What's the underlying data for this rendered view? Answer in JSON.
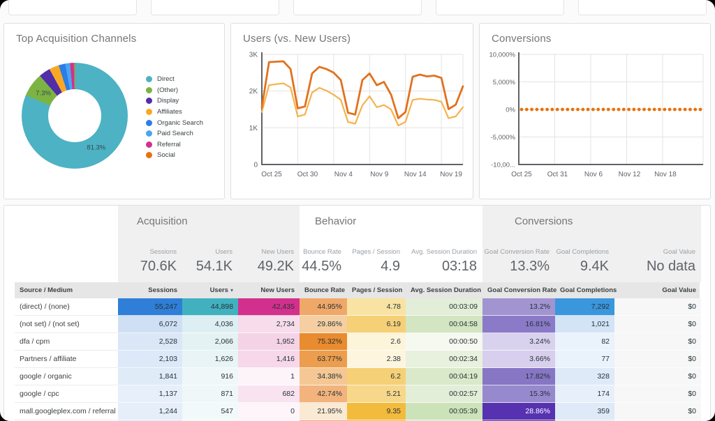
{
  "window": {
    "background": "#fbfbfb",
    "frame_color": "#000000"
  },
  "chart_data": [
    {
      "type": "pie",
      "title": "Top Acquisition Channels",
      "donut": true,
      "legend_position": "right",
      "slices": [
        {
          "label": "Direct",
          "value": 81.3,
          "color": "#4cb2c4",
          "pct_label": "81.3%"
        },
        {
          "label": "(Other)",
          "value": 7.3,
          "color": "#7cb342",
          "pct_label": "7.3%"
        },
        {
          "label": "Display",
          "value": 3.5,
          "color": "#512da8"
        },
        {
          "label": "Affiliates",
          "value": 3.0,
          "color": "#f9a825"
        },
        {
          "label": "Organic Search",
          "value": 2.0,
          "color": "#2b7de9"
        },
        {
          "label": "Paid Search",
          "value": 1.5,
          "color": "#4aa5f0"
        },
        {
          "label": "Referral",
          "value": 1.1,
          "color": "#d3308e"
        },
        {
          "label": "Social",
          "value": 0.3,
          "color": "#e8710a"
        }
      ]
    },
    {
      "type": "line",
      "title": "Users (vs. New Users)",
      "grid": true,
      "ylim": [
        0,
        3000
      ],
      "y_tick_labels": [
        "3K",
        "2K",
        "1K",
        "0"
      ],
      "x_tick_labels": [
        "Oct 25",
        "Oct 30",
        "Nov 4",
        "Nov 9",
        "Nov 14",
        "Nov 19"
      ],
      "x_tick_indices": [
        0,
        5,
        10,
        15,
        20,
        25
      ],
      "series": [
        {
          "name": "New Users",
          "color": "#f6b24c",
          "values": [
            1430,
            2160,
            2190,
            2210,
            2100,
            1310,
            1360,
            1960,
            2090,
            2010,
            1900,
            1760,
            1160,
            1110,
            1610,
            1860,
            1560,
            1620,
            1500,
            1060,
            1160,
            1760,
            1790,
            1770,
            1760,
            1710,
            1260,
            1310,
            1560
          ]
        },
        {
          "name": "Users",
          "color": "#e2711d",
          "values": [
            1560,
            2790,
            2800,
            2810,
            2600,
            1530,
            1580,
            2480,
            2660,
            2600,
            2500,
            2300,
            1410,
            1360,
            2300,
            2480,
            2160,
            2250,
            1900,
            1260,
            1430,
            2390,
            2450,
            2400,
            2420,
            2360,
            1510,
            1630,
            2130
          ]
        }
      ]
    },
    {
      "type": "line",
      "style": "dotted",
      "title": "Conversions",
      "grid": true,
      "ylim": [
        -10000,
        10000
      ],
      "y_tick_labels": [
        "10,000%",
        "5,000%",
        "0%",
        "-5,000%",
        "-10,00..."
      ],
      "x_tick_labels": [
        "Oct 25",
        "Oct 31",
        "Nov 6",
        "Nov 12",
        "Nov 18"
      ],
      "series": [
        {
          "name": "Conversions",
          "color": "#e8710a",
          "constant_value": 0,
          "num_points": 36
        }
      ]
    }
  ],
  "summary": {
    "sections": [
      {
        "title": "Acquisition",
        "shaded": true,
        "metrics": [
          {
            "label": "Sessions",
            "value": "70.6K"
          },
          {
            "label": "Users",
            "value": "54.1K"
          },
          {
            "label": "New Users",
            "value": "49.2K"
          }
        ]
      },
      {
        "title": "Behavior",
        "shaded": false,
        "metrics": [
          {
            "label": "Bounce Rate",
            "value": "44.5%"
          },
          {
            "label": "Pages / Session",
            "value": "4.9"
          },
          {
            "label": "Avg. Session Duration",
            "value": "03:18"
          }
        ]
      },
      {
        "title": "Conversions",
        "shaded": true,
        "metrics": [
          {
            "label": "Goal Conversion Rate",
            "value": "13.3%"
          },
          {
            "label": "Goal Completions",
            "value": "9.4K"
          },
          {
            "label": "Goal Value",
            "value": "No data"
          }
        ]
      }
    ]
  },
  "table": {
    "columns": [
      "Source / Medium",
      "Sessions",
      "Users",
      "New Users",
      "Bounce Rate",
      "Pages / Session",
      "Avg. Session Duration",
      "Goal Conversion Rate",
      "Goal Completions",
      "Goal Value"
    ],
    "sort_column_index": 2,
    "sort_indicator": "▾",
    "rows": [
      {
        "source": "(direct) / (none)",
        "cells": [
          {
            "v": "55,247",
            "bg": "#2f7ed8"
          },
          {
            "v": "44,898",
            "bg": "#41b1c0"
          },
          {
            "v": "42,435",
            "bg": "#d3308e"
          },
          {
            "v": "44.95%",
            "bg": "#f0a869"
          },
          {
            "v": "4.78",
            "bg": "#f8e3a2"
          },
          {
            "v": "00:03:09",
            "bg": "#e3eed8"
          },
          {
            "v": "13.2%",
            "bg": "#a294d1"
          },
          {
            "v": "7,292",
            "bg": "#3a96dd"
          },
          {
            "v": "$0",
            "bg": "#f7f7f7"
          }
        ]
      },
      {
        "source": "(not set) / (not set)",
        "cells": [
          {
            "v": "6,072",
            "bg": "#cfdff4"
          },
          {
            "v": "4,036",
            "bg": "#ddeff2"
          },
          {
            "v": "2,734",
            "bg": "#f7dcec"
          },
          {
            "v": "29.86%",
            "bg": "#f5cfa2"
          },
          {
            "v": "6.19",
            "bg": "#f6d077"
          },
          {
            "v": "00:04:58",
            "bg": "#d3e5c1"
          },
          {
            "v": "16.81%",
            "bg": "#8a7ac8"
          },
          {
            "v": "1,021",
            "bg": "#d2e4f6"
          },
          {
            "v": "$0",
            "bg": "#f7f7f7"
          }
        ]
      },
      {
        "source": "dfa / cpm",
        "cells": [
          {
            "v": "2,528",
            "bg": "#dbe7f7"
          },
          {
            "v": "2,066",
            "bg": "#e4f2f4"
          },
          {
            "v": "1,952",
            "bg": "#f4d3e7"
          },
          {
            "v": "75.32%",
            "bg": "#e98b2f"
          },
          {
            "v": "2.6",
            "bg": "#fdf5da"
          },
          {
            "v": "00:00:50",
            "bg": "#f6f9f0"
          },
          {
            "v": "3.24%",
            "bg": "#d9d2ee"
          },
          {
            "v": "82",
            "bg": "#eaf2fb"
          },
          {
            "v": "$0",
            "bg": "#f7f7f7"
          }
        ]
      },
      {
        "source": "Partners / affiliate",
        "cells": [
          {
            "v": "2,103",
            "bg": "#dde9f8"
          },
          {
            "v": "1,626",
            "bg": "#e8f4f6"
          },
          {
            "v": "1,416",
            "bg": "#f6d8ea"
          },
          {
            "v": "63.77%",
            "bg": "#ec9d4e"
          },
          {
            "v": "2.38",
            "bg": "#fdf5de"
          },
          {
            "v": "00:02:34",
            "bg": "#e8f1dd"
          },
          {
            "v": "3.66%",
            "bg": "#d7cfed"
          },
          {
            "v": "77",
            "bg": "#eaf2fb"
          },
          {
            "v": "$0",
            "bg": "#f7f7f7"
          }
        ]
      },
      {
        "source": "google / organic",
        "cells": [
          {
            "v": "1,841",
            "bg": "#e0ebf8"
          },
          {
            "v": "916",
            "bg": "#eff7f8"
          },
          {
            "v": "1",
            "bg": "#fdf4f9"
          },
          {
            "v": "34.38%",
            "bg": "#f4c794"
          },
          {
            "v": "6.2",
            "bg": "#f6d077"
          },
          {
            "v": "00:04:19",
            "bg": "#d9e9c9"
          },
          {
            "v": "17.82%",
            "bg": "#8676c4"
          },
          {
            "v": "328",
            "bg": "#dfeaf8"
          },
          {
            "v": "$0",
            "bg": "#f7f7f7"
          }
        ]
      },
      {
        "source": "google / cpc",
        "cells": [
          {
            "v": "1,137",
            "bg": "#e7effa"
          },
          {
            "v": "871",
            "bg": "#eff7f8"
          },
          {
            "v": "682",
            "bg": "#f9e3f0"
          },
          {
            "v": "42.74%",
            "bg": "#f2b37c"
          },
          {
            "v": "5.21",
            "bg": "#f7d88a"
          },
          {
            "v": "00:02:57",
            "bg": "#e3eed8"
          },
          {
            "v": "15.3%",
            "bg": "#9789cd"
          },
          {
            "v": "174",
            "bg": "#e7f0fa"
          },
          {
            "v": "$0",
            "bg": "#f7f7f7"
          }
        ]
      },
      {
        "source": "mall.googleplex.com / referral",
        "cells": [
          {
            "v": "1,244",
            "bg": "#e5eef9"
          },
          {
            "v": "547",
            "bg": "#f2f9fa"
          },
          {
            "v": "0",
            "bg": "#fdf5fa"
          },
          {
            "v": "21.95%",
            "bg": "#fae9d3"
          },
          {
            "v": "9.35",
            "bg": "#f3bb3c"
          },
          {
            "v": "00:05:39",
            "bg": "#cce3b9"
          },
          {
            "v": "28.86%",
            "bg": "#5632b0",
            "fg": "#ffffff"
          },
          {
            "v": "359",
            "bg": "#dfeaf8"
          },
          {
            "v": "$0",
            "bg": "#f7f7f7"
          }
        ]
      },
      {
        "source": "",
        "partial": true,
        "cells": [
          {
            "v": "",
            "bg": "#dbe7f7"
          },
          {
            "v": "",
            "bg": "#eef7f8"
          },
          {
            "v": "",
            "bg": "#fdf5fa"
          },
          {
            "v": "",
            "bg": "#f0a869"
          },
          {
            "v": "",
            "bg": "#f3bb3c"
          },
          {
            "v": "",
            "bg": "#d9e9c9"
          },
          {
            "v": "",
            "bg": "#5632b0"
          },
          {
            "v": "",
            "bg": "#dfeaf8"
          },
          {
            "v": "",
            "bg": "#f7f7f7"
          }
        ]
      }
    ]
  }
}
